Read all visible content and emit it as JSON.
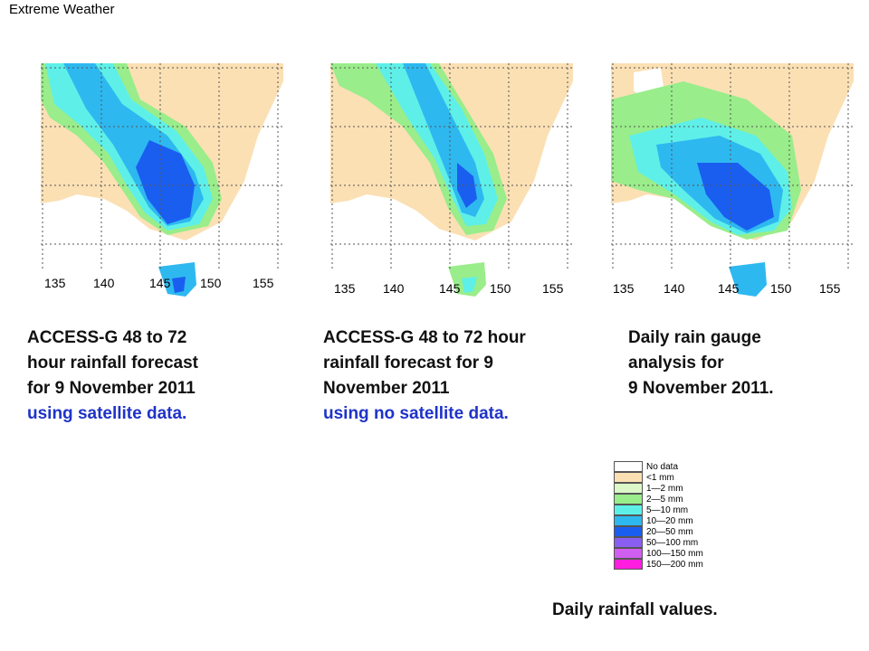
{
  "header": {
    "title": "Extreme Weather"
  },
  "maps": [
    {
      "caption_line1": "ACCESS-G 48 to 72",
      "caption_line2": "hour rainfall forecast",
      "caption_line3": "for 9 November 2011",
      "caption_line4": "using satellite data."
    },
    {
      "caption_line1": "ACCESS-G 48 to 72 hour",
      "caption_line2": "rainfall forecast for 9",
      "caption_line3": "November 2011",
      "caption_line4": "using no satellite data."
    },
    {
      "caption_line1": "Daily rain gauge",
      "caption_line2": "analysis for",
      "caption_line3": "9 November 2011.",
      "caption_line4": ""
    }
  ],
  "longitude_ticks": [
    "135",
    "140",
    "145",
    "150",
    "155"
  ],
  "legend": {
    "title": "Daily rainfall values.",
    "items": [
      {
        "label": "No data",
        "color": "#ffffff"
      },
      {
        "label": "<1 mm",
        "color": "#fbe0b4"
      },
      {
        "label": "1—2 mm",
        "color": "#dcf8c8"
      },
      {
        "label": "2—5 mm",
        "color": "#99ed8a"
      },
      {
        "label": "5—10 mm",
        "color": "#5ef0e8"
      },
      {
        "label": "10—20 mm",
        "color": "#2eb8f0"
      },
      {
        "label": "20—50 mm",
        "color": "#1a5ef0"
      },
      {
        "label": "50—100 mm",
        "color": "#8a5ef0"
      },
      {
        "label": "100—150 mm",
        "color": "#d05ef0"
      },
      {
        "label": "150—200 mm",
        "color": "#ff1ee0"
      }
    ]
  }
}
